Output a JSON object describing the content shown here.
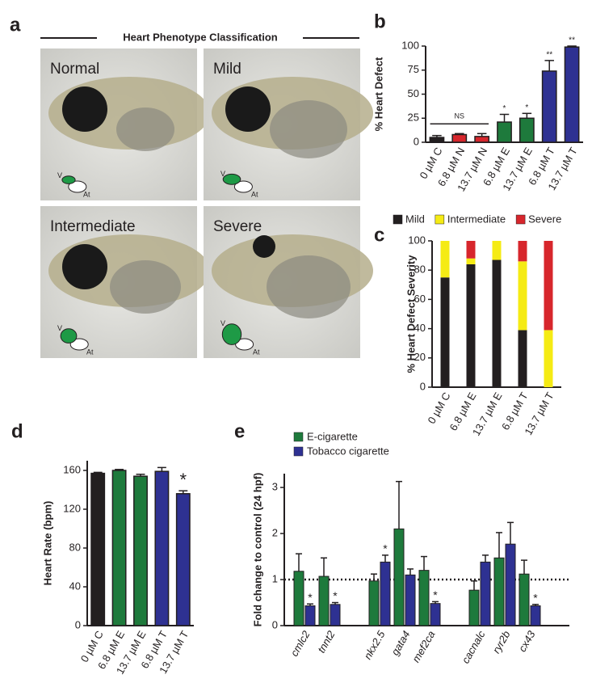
{
  "phenotype_panel": {
    "panel_label": "a",
    "title": "Heart Phenotype Classification",
    "images": [
      {
        "label": "Normal",
        "ventricle": "V",
        "atrium": "At"
      },
      {
        "label": "Mild",
        "ventricle": "V",
        "atrium": "At"
      },
      {
        "label": "Intermediate",
        "ventricle": "V",
        "atrium": "At"
      },
      {
        "label": "Severe",
        "ventricle": "V",
        "atrium": "At"
      }
    ]
  },
  "chart_data": [
    {
      "type": "bar",
      "panel_label": "b",
      "ylabel": "% Heart Defect",
      "categories": [
        "0 µM C",
        "6.8 µM N",
        "13.7 µM N",
        "6.8 µM E",
        "13.7 µM E",
        "6.8 µM T",
        "13.7 µM T"
      ],
      "values": [
        5,
        8,
        6,
        21,
        25,
        74,
        99
      ],
      "errors": [
        2,
        1,
        3,
        8,
        5,
        11,
        1
      ],
      "colors": [
        "#231f20",
        "#d7262c",
        "#d7262c",
        "#1e7a3c",
        "#1e7a3c",
        "#2e3192",
        "#2e3192"
      ],
      "significance": [
        null,
        null,
        null,
        "*",
        "*",
        "**",
        "**"
      ],
      "ns_label": "NS",
      "ylim": [
        0,
        100
      ],
      "yticks": [
        0,
        25,
        50,
        75,
        100
      ]
    },
    {
      "type": "stacked_bar",
      "panel_label": "c",
      "ylabel": "% Heart Defect Severity",
      "categories": [
        "0 µM C",
        "6.8 µM E",
        "13.7 µM E",
        "6.8 µM T",
        "13.7 µM T"
      ],
      "series": [
        {
          "name": "Mild",
          "color": "#231f20",
          "values": [
            75,
            84,
            87,
            39,
            0
          ]
        },
        {
          "name": "Intermediate",
          "color": "#f5eb14",
          "values": [
            25,
            4,
            13,
            47,
            39
          ]
        },
        {
          "name": "Severe",
          "color": "#d7262c",
          "values": [
            0,
            12,
            0,
            14,
            61
          ]
        }
      ],
      "ylim": [
        0,
        100
      ],
      "yticks": [
        0,
        20,
        40,
        60,
        80,
        100
      ]
    },
    {
      "type": "bar",
      "panel_label": "d",
      "ylabel": "Heart Rate (bpm)",
      "categories": [
        "0 µM C",
        "6.8 µM E",
        "13.7 µM E",
        "6.8 µM T",
        "13.7 µM T"
      ],
      "values": [
        157,
        160,
        154,
        159,
        136
      ],
      "errors": [
        1,
        1,
        2,
        4,
        3
      ],
      "colors": [
        "#231f20",
        "#1e7a3c",
        "#1e7a3c",
        "#2e3192",
        "#2e3192"
      ],
      "significance": [
        null,
        null,
        null,
        null,
        "*"
      ],
      "ylim": [
        0,
        170
      ],
      "yticks": [
        0,
        40,
        80,
        120,
        160
      ]
    },
    {
      "type": "grouped_bar",
      "panel_label": "e",
      "ylabel": "Fold change to control (24 hpf)",
      "categories": [
        "cmlc2",
        "tnnt2",
        "nkx2.5",
        "gata4",
        "mef2ca",
        "cacnalc",
        "ryr2b",
        "cx43"
      ],
      "series": [
        {
          "name": "E-cigarette",
          "color": "#1e7a3c",
          "values": [
            1.18,
            1.07,
            0.97,
            2.1,
            1.2,
            0.77,
            1.47,
            1.12
          ],
          "errors": [
            0.38,
            0.4,
            0.15,
            1.03,
            0.3,
            0.2,
            0.55,
            0.3
          ],
          "significance": [
            null,
            null,
            null,
            null,
            null,
            null,
            null,
            null
          ]
        },
        {
          "name": "Tobacco cigarette",
          "color": "#2e3192",
          "values": [
            0.43,
            0.46,
            1.38,
            1.1,
            0.48,
            1.38,
            1.77,
            0.43
          ],
          "errors": [
            0.04,
            0.04,
            0.15,
            0.13,
            0.04,
            0.15,
            0.47,
            0.03
          ],
          "significance": [
            "*",
            "*",
            "*",
            null,
            "*",
            null,
            null,
            "*"
          ]
        }
      ],
      "reference_line": 1,
      "ylim": [
        0,
        3.3
      ],
      "yticks": [
        0,
        1,
        2,
        3
      ]
    }
  ]
}
